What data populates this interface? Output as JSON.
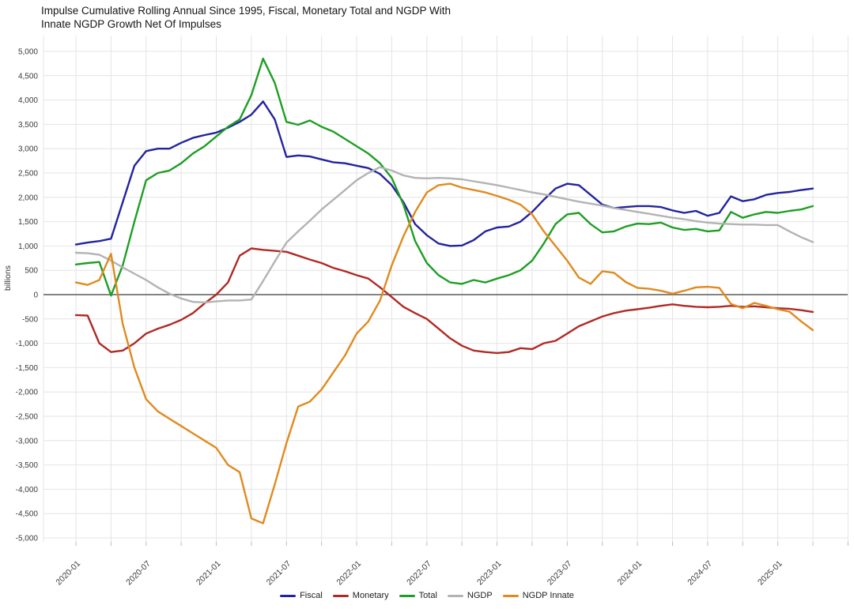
{
  "title": {
    "line1": "Impulse Cumulative Rolling Annual Since 1995, Fiscal, Monetary Total and NGDP With",
    "line2": "Innate NGDP Growth Net Of Impulses"
  },
  "y_axis": {
    "label": "billions",
    "tick_labels": [
      "5,000",
      "4,500",
      "4,000",
      "3,500",
      "3,000",
      "2,500",
      "2,000",
      "1,500",
      "1,000",
      "500",
      "0",
      "-500",
      "-1,000",
      "-1,500",
      "-2,000",
      "-2,500",
      "-3,000",
      "-3,500",
      "-4,000",
      "-4,500",
      "-5,000"
    ],
    "min": -5000,
    "max": 5000,
    "step": 500
  },
  "x_axis": {
    "tick_labels": [
      "2020-01",
      "2020-07",
      "2021-01",
      "2021-07",
      "2022-01",
      "2022-07",
      "2023-01",
      "2023-07",
      "2024-01",
      "2024-07",
      "2025-01"
    ],
    "tick_every_months": 6
  },
  "legend": {
    "items": [
      {
        "label": "Fiscal",
        "color": "#23239e"
      },
      {
        "label": "Monetary",
        "color": "#b02a25"
      },
      {
        "label": "Total",
        "color": "#1e9e24"
      },
      {
        "label": "NGDP",
        "color": "#b3b3b3"
      },
      {
        "label": "NGDP Innate",
        "color": "#e08a1e"
      }
    ]
  },
  "colors": {
    "zero_line": "#5a5a5a",
    "gridline": "#e4e4e4",
    "tick_mark": "#bcbcbc",
    "tick_text": "#3a3a3a"
  },
  "chart_data": {
    "type": "line",
    "title": "Impulse Cumulative Rolling Annual Since 1995, Fiscal, Monetary Total and NGDP With Innate NGDP Growth Net Of Impulses",
    "ylabel": "billions",
    "ylim": [
      -5000,
      5000
    ],
    "y_step": 500,
    "grid": true,
    "legend_position": "bottom",
    "x": [
      "2020-01",
      "2020-02",
      "2020-03",
      "2020-04",
      "2020-05",
      "2020-06",
      "2020-07",
      "2020-08",
      "2020-09",
      "2020-10",
      "2020-11",
      "2020-12",
      "2021-01",
      "2021-02",
      "2021-03",
      "2021-04",
      "2021-05",
      "2021-06",
      "2021-07",
      "2021-08",
      "2021-09",
      "2021-10",
      "2021-11",
      "2021-12",
      "2022-01",
      "2022-02",
      "2022-03",
      "2022-04",
      "2022-05",
      "2022-06",
      "2022-07",
      "2022-08",
      "2022-09",
      "2022-10",
      "2022-11",
      "2022-12",
      "2023-01",
      "2023-02",
      "2023-03",
      "2023-04",
      "2023-05",
      "2023-06",
      "2023-07",
      "2023-08",
      "2023-09",
      "2023-10",
      "2023-11",
      "2023-12",
      "2024-01",
      "2024-02",
      "2024-03",
      "2024-04",
      "2024-05",
      "2024-06",
      "2024-07",
      "2024-08",
      "2024-09",
      "2024-10",
      "2024-11",
      "2024-12",
      "2025-01",
      "2025-02",
      "2025-03",
      "2025-04"
    ],
    "series": [
      {
        "name": "Fiscal",
        "color": "#23239e",
        "values": [
          1030,
          1070,
          1100,
          1150,
          1900,
          2650,
          2950,
          3000,
          3000,
          3120,
          3220,
          3280,
          3330,
          3430,
          3550,
          3700,
          3970,
          3600,
          2830,
          2860,
          2840,
          2780,
          2720,
          2700,
          2650,
          2600,
          2480,
          2250,
          1900,
          1450,
          1220,
          1050,
          1000,
          1010,
          1120,
          1300,
          1380,
          1400,
          1500,
          1700,
          1950,
          2180,
          2280,
          2250,
          2050,
          1850,
          1780,
          1800,
          1820,
          1820,
          1800,
          1730,
          1680,
          1720,
          1620,
          1680,
          2020,
          1920,
          1960,
          2050,
          2090,
          2110,
          2150,
          2180
        ]
      },
      {
        "name": "Monetary",
        "color": "#b02a25",
        "values": [
          -420,
          -430,
          -1000,
          -1180,
          -1150,
          -1000,
          -800,
          -700,
          -620,
          -520,
          -380,
          -180,
          0,
          250,
          800,
          950,
          920,
          900,
          880,
          800,
          720,
          650,
          550,
          480,
          400,
          330,
          150,
          -50,
          -250,
          -380,
          -500,
          -700,
          -900,
          -1050,
          -1150,
          -1180,
          -1200,
          -1180,
          -1100,
          -1120,
          -1000,
          -950,
          -800,
          -650,
          -550,
          -450,
          -380,
          -330,
          -300,
          -270,
          -230,
          -200,
          -230,
          -250,
          -260,
          -250,
          -230,
          -250,
          -240,
          -260,
          -280,
          -290,
          -320,
          -355
        ]
      },
      {
        "name": "Total",
        "color": "#1e9e24",
        "values": [
          620,
          650,
          670,
          -20,
          600,
          1500,
          2350,
          2500,
          2550,
          2700,
          2900,
          3050,
          3250,
          3450,
          3600,
          4100,
          4850,
          4350,
          3550,
          3490,
          3580,
          3450,
          3350,
          3200,
          3050,
          2900,
          2700,
          2400,
          1850,
          1100,
          650,
          400,
          250,
          220,
          300,
          250,
          330,
          400,
          500,
          700,
          1050,
          1450,
          1650,
          1680,
          1450,
          1280,
          1300,
          1400,
          1460,
          1450,
          1480,
          1380,
          1330,
          1350,
          1300,
          1320,
          1700,
          1580,
          1650,
          1700,
          1680,
          1720,
          1750,
          1820
        ]
      },
      {
        "name": "NGDP",
        "color": "#b3b3b3",
        "values": [
          860,
          850,
          820,
          700,
          560,
          430,
          300,
          150,
          20,
          -80,
          -150,
          -160,
          -140,
          -120,
          -120,
          -100,
          280,
          680,
          1070,
          1300,
          1520,
          1750,
          1950,
          2150,
          2350,
          2500,
          2620,
          2550,
          2450,
          2400,
          2390,
          2400,
          2390,
          2370,
          2330,
          2290,
          2250,
          2200,
          2150,
          2100,
          2060,
          2010,
          1960,
          1910,
          1870,
          1830,
          1780,
          1740,
          1700,
          1660,
          1620,
          1580,
          1550,
          1510,
          1480,
          1460,
          1450,
          1440,
          1440,
          1430,
          1430,
          1300,
          1180,
          1080
        ]
      },
      {
        "name": "NGDP Innate",
        "color": "#e08a1e",
        "values": [
          250,
          200,
          300,
          840,
          -600,
          -1500,
          -2150,
          -2400,
          -2550,
          -2700,
          -2850,
          -3000,
          -3150,
          -3500,
          -3650,
          -4600,
          -4700,
          -3900,
          -3050,
          -2300,
          -2200,
          -1950,
          -1600,
          -1250,
          -800,
          -550,
          -120,
          600,
          1200,
          1700,
          2100,
          2250,
          2280,
          2200,
          2150,
          2100,
          2030,
          1950,
          1850,
          1650,
          1300,
          1000,
          700,
          350,
          220,
          480,
          450,
          260,
          140,
          120,
          80,
          20,
          80,
          150,
          160,
          140,
          -190,
          -280,
          -170,
          -230,
          -300,
          -350,
          -550,
          -730
        ]
      }
    ]
  }
}
